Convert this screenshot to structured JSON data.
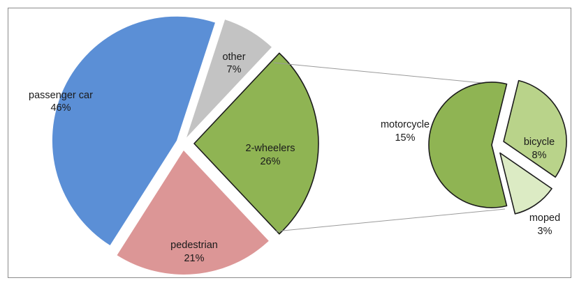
{
  "chart_data": {
    "type": "pie",
    "main_pie": {
      "slices": [
        {
          "name": "passenger car",
          "value": 46,
          "value_label": "46%",
          "color": "#5b8fd6"
        },
        {
          "name": "other",
          "value": 7,
          "value_label": "7%",
          "color": "#c3c3c3"
        },
        {
          "name": "2-wheelers",
          "value": 26,
          "value_label": "26%",
          "color": "#8fb453"
        },
        {
          "name": "pedestrian",
          "value": 21,
          "value_label": "21%",
          "color": "#dc9696"
        }
      ]
    },
    "breakout_of": "2-wheelers",
    "sub_pie": {
      "slices": [
        {
          "name": "motorcycle",
          "value": 15,
          "value_label": "15%",
          "color": "#8fb453"
        },
        {
          "name": "bicycle",
          "value": 8,
          "value_label": "8%",
          "color": "#b9d38a"
        },
        {
          "name": "moped",
          "value": 3,
          "value_label": "3%",
          "color": "#dcebc4"
        }
      ]
    },
    "legend": "none",
    "labels": "category name and percentage on or beside each slice"
  }
}
